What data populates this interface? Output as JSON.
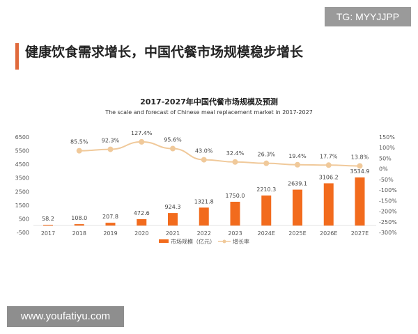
{
  "headline": "健康饮食需求增长，中国代餐市场规模稳步增长",
  "watermarks": {
    "top_right": "TG: MYYJJPP",
    "bottom_left": "www.youfatiyu.com"
  },
  "chart_data": {
    "type": "bar+line",
    "title": "2017-2027年中国代餐市场规模及预测",
    "subtitle": "The scale and forecast of Chinese meal replacement market in 2017-2027",
    "categories": [
      "2017",
      "2018",
      "2019",
      "2020",
      "2021",
      "2022",
      "2023",
      "2024E",
      "2025E",
      "2026E",
      "2027E"
    ],
    "series": [
      {
        "name": "市场规模（亿元）",
        "type": "bar",
        "axis": "left",
        "color": "#f26b1d",
        "values": [
          58.2,
          108.0,
          207.8,
          472.6,
          924.3,
          1321.8,
          1750.0,
          2210.3,
          2639.1,
          3106.2,
          3534.9
        ],
        "labels": [
          "58.2",
          "108.0",
          "207.8",
          "472.6",
          "924.3",
          "1321.8",
          "1750.0",
          "2210.3",
          "2639.1",
          "3106.2",
          "3534.9"
        ]
      },
      {
        "name": "增长率",
        "type": "line",
        "axis": "right",
        "color": "#f0c99a",
        "values": [
          null,
          85.5,
          92.3,
          127.4,
          95.6,
          43.0,
          32.4,
          26.3,
          19.4,
          17.7,
          13.8
        ],
        "labels": [
          "",
          "85.5%",
          "92.3%",
          "127.4%",
          "95.6%",
          "43.0%",
          "32.4%",
          "26.3%",
          "19.4%",
          "17.7%",
          "13.8%"
        ]
      }
    ],
    "y_left": {
      "ylim": [
        -500,
        6500
      ],
      "ticks": [
        "6500",
        "5500",
        "4500",
        "3500",
        "2500",
        "1500",
        "500",
        "-500"
      ]
    },
    "y_right": {
      "ylim": [
        -300,
        150
      ],
      "ticks": [
        "150%",
        "100%",
        "50%",
        "0%",
        "-50%",
        "-100%",
        "-150%",
        "-200%",
        "-250%",
        "-300%"
      ]
    },
    "grid": false,
    "legend": "bottom"
  }
}
